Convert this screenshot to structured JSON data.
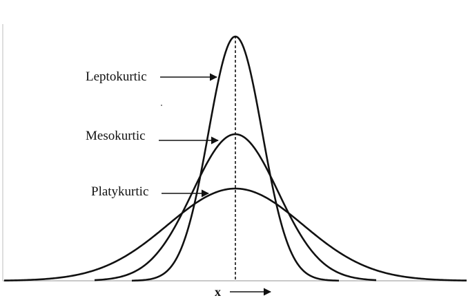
{
  "diagram": {
    "labels": {
      "leptokurtic": "Leptokurtic",
      "mesokurtic": "Mesokurtic",
      "platykurtic": "Platykurtic"
    },
    "x_axis_label": "x"
  }
}
